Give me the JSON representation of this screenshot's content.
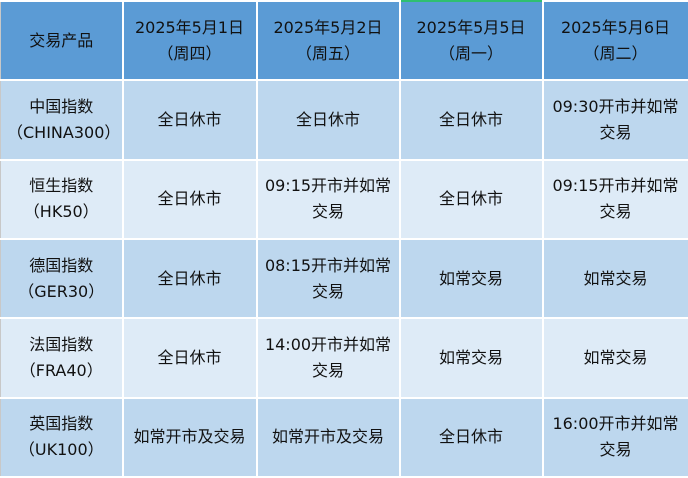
{
  "header": {
    "product_label": "交易产品",
    "dates": [
      {
        "date": "2025年5月1日",
        "weekday": "（周四）"
      },
      {
        "date": "2025年5月2日",
        "weekday": "（周五）"
      },
      {
        "date": "2025年5月5日",
        "weekday": "（周一）"
      },
      {
        "date": "2025年5月6日",
        "weekday": "（周二）"
      }
    ]
  },
  "rows": [
    {
      "name": "中国指数",
      "code": "（CHINA300）",
      "cells": [
        "全日休市",
        "全日休市",
        "全日休市",
        "09:30开市并如常交易"
      ]
    },
    {
      "name": "恒生指数",
      "code": "（HK50）",
      "cells": [
        "全日休市",
        "09:15开市并如常交易",
        "全日休市",
        "09:15开市并如常交易"
      ]
    },
    {
      "name": "德国指数",
      "code": "（GER30）",
      "cells": [
        "全日休市",
        "08:15开市并如常交易",
        "如常交易",
        "如常交易"
      ]
    },
    {
      "name": "法国指数",
      "code": "（FRA40）",
      "cells": [
        "全日休市",
        "14:00开市并如常交易",
        "如常交易",
        "如常交易"
      ]
    },
    {
      "name": "英国指数",
      "code": "（UK100）",
      "cells": [
        "如常开市及交易",
        "如常开市及交易",
        "全日休市",
        "16:00开市并如常交易"
      ]
    }
  ],
  "colors": {
    "header": "#5b9bd5",
    "row_dark": "#bdd7ee",
    "row_light": "#deebf7"
  }
}
